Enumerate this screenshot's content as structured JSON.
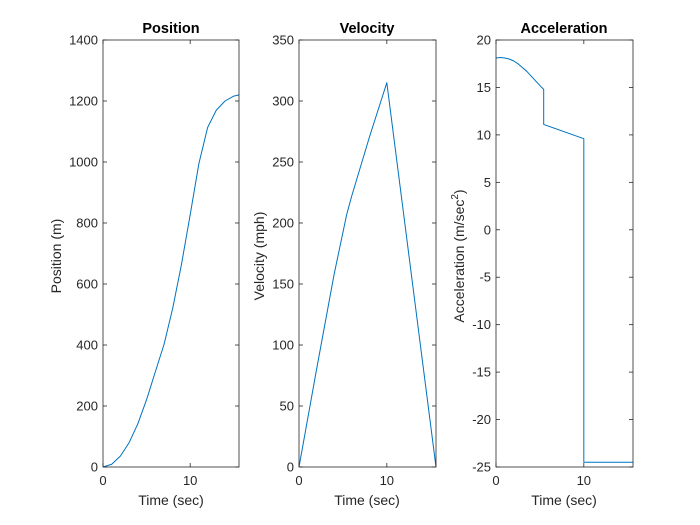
{
  "chart_data": [
    {
      "type": "line",
      "title": "Position",
      "xlabel": "Time (sec)",
      "ylabel": "Position (m)",
      "xlim": [
        0,
        15.6
      ],
      "ylim": [
        0,
        1400
      ],
      "xticks": [
        0,
        10
      ],
      "yticks": [
        0,
        200,
        400,
        600,
        800,
        1000,
        1200,
        1400
      ],
      "grid": false,
      "color": "#0072BD",
      "series": [
        {
          "x": [
            0,
            1,
            2,
            3,
            4,
            5,
            5.43,
            6,
            7,
            8,
            9,
            10,
            11,
            12,
            13,
            14,
            15,
            15.6
          ],
          "y": [
            0,
            9,
            36,
            80,
            142,
            221,
            260,
            312,
            402,
            521,
            664,
            827,
            995,
            1113,
            1170,
            1200,
            1216,
            1220
          ]
        }
      ]
    },
    {
      "type": "line",
      "title": "Velocity",
      "xlabel": "Time (sec)",
      "ylabel": "Velocity (mph)",
      "xlim": [
        0,
        15.6
      ],
      "ylim": [
        0,
        350
      ],
      "xticks": [
        0,
        10
      ],
      "yticks": [
        0,
        50,
        100,
        150,
        200,
        250,
        300,
        350
      ],
      "grid": false,
      "color": "#0072BD",
      "series": [
        {
          "x": [
            0,
            2,
            4,
            5.43,
            6,
            8,
            10,
            15.6
          ],
          "y": [
            0,
            80,
            158,
            207,
            222,
            270,
            315,
            0
          ]
        }
      ]
    },
    {
      "type": "line",
      "title": "Acceleration",
      "xlabel": "Time (sec)",
      "ylabel_main": "Acceleration (m/sec",
      "ylabel_sup": "2",
      "ylabel_end": ")",
      "xlim": [
        0,
        15.6
      ],
      "ylim": [
        -25,
        20
      ],
      "xticks": [
        0,
        10
      ],
      "yticks": [
        -25,
        -20,
        -15,
        -10,
        -5,
        0,
        5,
        10,
        15,
        20
      ],
      "grid": false,
      "color": "#0072BD",
      "series": [
        {
          "x": [
            0,
            0.5,
            1,
            1.5,
            2,
            2.5,
            3,
            3.5,
            4,
            4.5,
            5,
            5.43,
            5.43,
            10,
            10,
            15.6
          ],
          "y": [
            18.1,
            18.15,
            18.1,
            18.0,
            17.8,
            17.5,
            17.1,
            16.7,
            16.2,
            15.7,
            15.2,
            14.8,
            11.1,
            9.6,
            -24.5,
            -24.5
          ]
        }
      ]
    }
  ]
}
